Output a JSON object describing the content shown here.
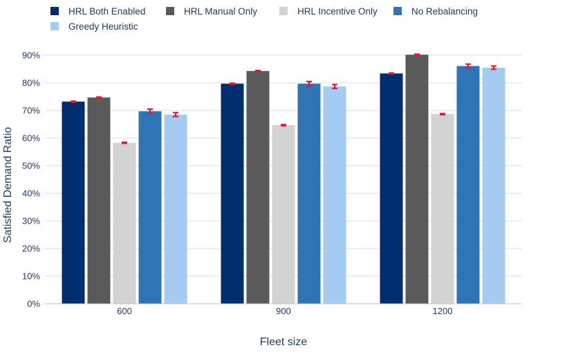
{
  "chart_data": {
    "type": "bar",
    "xlabel": "Fleet size",
    "ylabel": "Satisfied Demand Ratio",
    "categories": [
      "600",
      "900",
      "1200"
    ],
    "ylim": [
      0,
      90
    ],
    "yticks": [
      "0%",
      "10%",
      "20%",
      "30%",
      "40%",
      "50%",
      "60%",
      "70%",
      "80%",
      "90%"
    ],
    "legend_position": "top",
    "grid": true,
    "series": [
      {
        "name": "HRL Both Enabled",
        "color": "#002d6e",
        "values": [
          73.2,
          79.7,
          83.4
        ],
        "errors": [
          0.1,
          0.1,
          0.1
        ]
      },
      {
        "name": "HRL Manual Only",
        "color": "#5a5a5a",
        "values": [
          74.7,
          84.3,
          90.2
        ],
        "errors": [
          0.1,
          0.1,
          0.1
        ]
      },
      {
        "name": "HRL Incentive Only",
        "color": "#d3d3d3",
        "values": [
          58.3,
          64.7,
          68.7
        ],
        "errors": [
          0.1,
          0.1,
          0.1
        ]
      },
      {
        "name": "No Rebalancing",
        "color": "#2e75b6",
        "values": [
          69.7,
          79.7,
          86.1
        ],
        "errors": [
          0.8,
          0.8,
          0.7
        ]
      },
      {
        "name": "Greedy Heuristic",
        "color": "#a6cbf3",
        "values": [
          68.5,
          78.7,
          85.5
        ],
        "errors": [
          0.7,
          0.7,
          0.6
        ]
      }
    ],
    "error_bar_color": "#e8112d"
  }
}
